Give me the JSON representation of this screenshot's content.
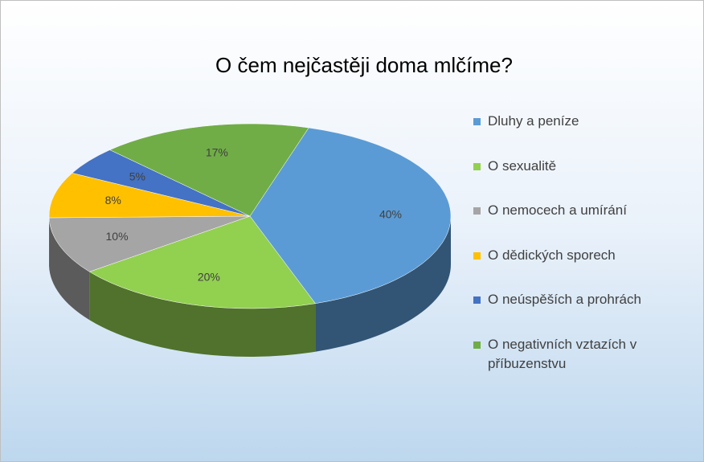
{
  "chart_data": {
    "type": "pie",
    "title": "O čem nejčastěji doma mlčíme?",
    "categories": [
      "Dluhy a peníze",
      "O sexualitě",
      "O nemocech a umírání",
      "O dědických sporech",
      "O neúspěších a prohrách",
      "O negativních vztazích v příbuzenstvu"
    ],
    "values": [
      40,
      20,
      10,
      8,
      5,
      17
    ],
    "value_labels": [
      "40%",
      "20%",
      "10%",
      "8%",
      "5%",
      "17%"
    ],
    "colors": [
      "#5b9bd5",
      "#92d050",
      "#a5a5a5",
      "#ffc000",
      "#4472c4",
      "#70ad47"
    ],
    "legend": "right"
  }
}
